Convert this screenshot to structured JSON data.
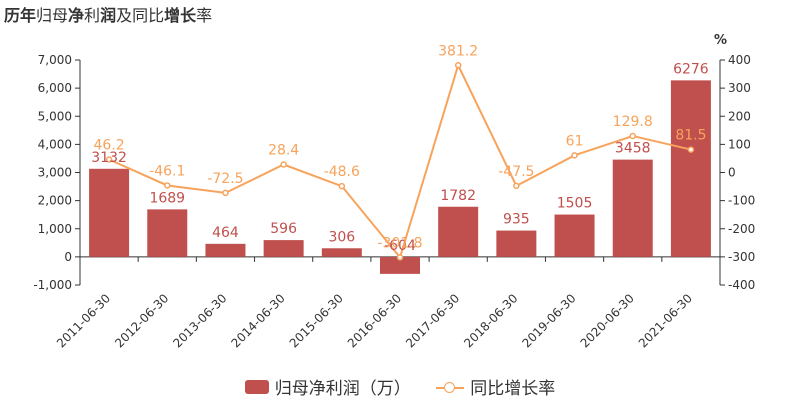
{
  "title": {
    "part1": "历年",
    "part2": "归母",
    "part3": "净",
    "part4": "利",
    "part5": "润",
    "part6": "及同比",
    "part7": "增",
    "part8": "长",
    "part9": "率"
  },
  "right_axis_unit": "%",
  "legend": {
    "bar_label": "归母净利润（万）",
    "line_label": "同比增长率"
  },
  "colors": {
    "bar": "#c0504d",
    "line": "#f7a35c",
    "bar_label": "#c0504d",
    "line_label": "#f7a35c"
  },
  "chart_data": {
    "type": "bar",
    "categories": [
      "2011-06-30",
      "2012-06-30",
      "2013-06-30",
      "2014-06-30",
      "2015-06-30",
      "2016-06-30",
      "2017-06-30",
      "2018-06-30",
      "2019-06-30",
      "2020-06-30",
      "2021-06-30"
    ],
    "series": [
      {
        "name": "归母净利润（万）",
        "type": "bar",
        "axis": "left",
        "values": [
          3132,
          1689,
          464,
          596,
          306,
          -604,
          1782,
          935,
          1505,
          3458,
          6276
        ],
        "labels": [
          "3132",
          "1689",
          "464",
          "596",
          "306",
          "-604",
          "1782",
          "935",
          "1505",
          "3458",
          "6276"
        ]
      },
      {
        "name": "同比增长率",
        "type": "line",
        "axis": "right",
        "values": [
          46.2,
          -46.1,
          -72.5,
          28.4,
          -48.6,
          -301.8,
          381.2,
          -47.5,
          61,
          129.8,
          81.5
        ],
        "labels": [
          "46.2",
          "-46.1",
          "-72.5",
          "28.4",
          "-48.6",
          "-301.8",
          "381.2",
          "-47.5",
          "61",
          "129.8",
          "81.5"
        ]
      }
    ],
    "y_left": {
      "ylim": [
        -1000,
        7000
      ],
      "ticks": [
        "-1,000",
        "0",
        "1,000",
        "2,000",
        "3,000",
        "4,000",
        "5,000",
        "6,000",
        "7,000"
      ]
    },
    "y_right": {
      "ylim": [
        -400,
        400
      ],
      "ticks": [
        "-400",
        "-300",
        "-200",
        "-100",
        "0",
        "100",
        "200",
        "300",
        "400"
      ]
    },
    "grid": false,
    "legend_position": "bottom-center"
  }
}
